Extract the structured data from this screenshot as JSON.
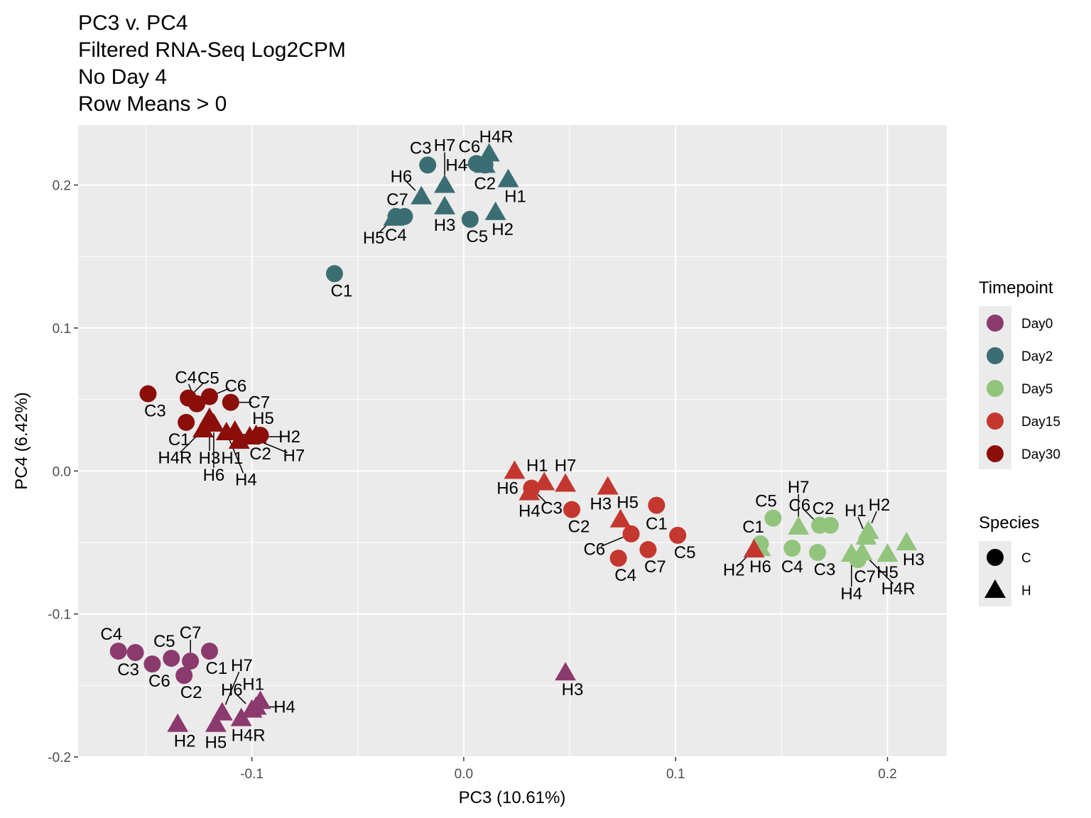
{
  "colors": {
    "Day0": "#8b3a6e",
    "Day2": "#3b6e73",
    "Day5": "#92c47d",
    "Day15": "#c4372f",
    "Day30": "#8b0e0a",
    "panel": "#ebebeb",
    "grid": "#ffffff"
  },
  "chart_data": {
    "type": "scatter",
    "title": [
      "PC3 v. PC4",
      "Filtered RNA-Seq Log2CPM",
      "No Day 4",
      "Row Means > 0"
    ],
    "xlabel": "PC3 (10.61%)",
    "ylabel": "PC4 (6.42%)",
    "xlim": [
      -0.182,
      0.228
    ],
    "ylim": [
      -0.2,
      0.242
    ],
    "xticks": [
      -0.1,
      0.0,
      0.1,
      0.2
    ],
    "xtick_labels": [
      "-0.1",
      "0.0",
      "0.1",
      "0.2"
    ],
    "yticks": [
      -0.2,
      -0.1,
      0.0,
      0.1,
      0.2
    ],
    "ytick_labels": [
      "-0.2",
      "-0.1",
      "0.0",
      "0.1",
      "0.2"
    ],
    "grid": true,
    "legend_timepoint": {
      "title": "Timepoint",
      "entries": [
        "Day0",
        "Day2",
        "Day5",
        "Day15",
        "Day30"
      ]
    },
    "legend_species": {
      "title": "Species",
      "entries": [
        "C",
        "H"
      ]
    },
    "points": [
      {
        "label": "C1",
        "timepoint": "Day0",
        "species": "C",
        "x": -0.12,
        "y": -0.126
      },
      {
        "label": "C2",
        "timepoint": "Day0",
        "species": "C",
        "x": -0.132,
        "y": -0.143
      },
      {
        "label": "C3",
        "timepoint": "Day0",
        "species": "C",
        "x": -0.155,
        "y": -0.127
      },
      {
        "label": "C4",
        "timepoint": "Day0",
        "species": "C",
        "x": -0.163,
        "y": -0.126
      },
      {
        "label": "C5",
        "timepoint": "Day0",
        "species": "C",
        "x": -0.138,
        "y": -0.131
      },
      {
        "label": "C6",
        "timepoint": "Day0",
        "species": "C",
        "x": -0.147,
        "y": -0.135
      },
      {
        "label": "C7",
        "timepoint": "Day0",
        "species": "C",
        "x": -0.129,
        "y": -0.133
      },
      {
        "label": "H1",
        "timepoint": "Day0",
        "species": "H",
        "x": -0.096,
        "y": -0.161
      },
      {
        "label": "H2",
        "timepoint": "Day0",
        "species": "H",
        "x": -0.135,
        "y": -0.177
      },
      {
        "label": "H3",
        "timepoint": "Day0",
        "species": "H",
        "x": 0.048,
        "y": -0.141
      },
      {
        "label": "H4",
        "timepoint": "Day0",
        "species": "H",
        "x": -0.098,
        "y": -0.165
      },
      {
        "label": "H4R",
        "timepoint": "Day0",
        "species": "H",
        "x": -0.105,
        "y": -0.173
      },
      {
        "label": "H5",
        "timepoint": "Day0",
        "species": "H",
        "x": -0.117,
        "y": -0.177
      },
      {
        "label": "H6",
        "timepoint": "Day0",
        "species": "H",
        "x": -0.1,
        "y": -0.167
      },
      {
        "label": "H7",
        "timepoint": "Day0",
        "species": "H",
        "x": -0.114,
        "y": -0.169
      },
      {
        "label": "C1",
        "timepoint": "Day2",
        "species": "C",
        "x": -0.061,
        "y": 0.138
      },
      {
        "label": "C2",
        "timepoint": "Day2",
        "species": "C",
        "x": 0.01,
        "y": 0.214
      },
      {
        "label": "C3",
        "timepoint": "Day2",
        "species": "C",
        "x": -0.017,
        "y": 0.214
      },
      {
        "label": "C4",
        "timepoint": "Day2",
        "species": "C",
        "x": -0.032,
        "y": 0.178
      },
      {
        "label": "C5",
        "timepoint": "Day2",
        "species": "C",
        "x": 0.003,
        "y": 0.176
      },
      {
        "label": "C6",
        "timepoint": "Day2",
        "species": "C",
        "x": 0.006,
        "y": 0.215
      },
      {
        "label": "C7",
        "timepoint": "Day2",
        "species": "C",
        "x": -0.028,
        "y": 0.178
      },
      {
        "label": "H1",
        "timepoint": "Day2",
        "species": "H",
        "x": 0.021,
        "y": 0.204
      },
      {
        "label": "H2",
        "timepoint": "Day2",
        "species": "H",
        "x": 0.015,
        "y": 0.181
      },
      {
        "label": "H3",
        "timepoint": "Day2",
        "species": "H",
        "x": -0.009,
        "y": 0.185
      },
      {
        "label": "H4",
        "timepoint": "Day2",
        "species": "H",
        "x": 0.01,
        "y": 0.214
      },
      {
        "label": "H4R",
        "timepoint": "Day2",
        "species": "H",
        "x": 0.012,
        "y": 0.222
      },
      {
        "label": "H5",
        "timepoint": "Day2",
        "species": "H",
        "x": -0.033,
        "y": 0.177
      },
      {
        "label": "H6",
        "timepoint": "Day2",
        "species": "H",
        "x": -0.02,
        "y": 0.192
      },
      {
        "label": "H7",
        "timepoint": "Day2",
        "species": "H",
        "x": -0.009,
        "y": 0.2
      },
      {
        "label": "C1",
        "timepoint": "Day5",
        "species": "C",
        "x": 0.14,
        "y": -0.051
      },
      {
        "label": "C2",
        "timepoint": "Day5",
        "species": "C",
        "x": 0.173,
        "y": -0.038
      },
      {
        "label": "C3",
        "timepoint": "Day5",
        "species": "C",
        "x": 0.167,
        "y": -0.057
      },
      {
        "label": "C4",
        "timepoint": "Day5",
        "species": "C",
        "x": 0.155,
        "y": -0.054
      },
      {
        "label": "C5",
        "timepoint": "Day5",
        "species": "C",
        "x": 0.146,
        "y": -0.033
      },
      {
        "label": "C6",
        "timepoint": "Day5",
        "species": "C",
        "x": 0.168,
        "y": -0.038
      },
      {
        "label": "C7",
        "timepoint": "Day5",
        "species": "C",
        "x": 0.186,
        "y": -0.062
      },
      {
        "label": "H1",
        "timepoint": "Day5",
        "species": "H",
        "x": 0.19,
        "y": -0.046
      },
      {
        "label": "H2",
        "timepoint": "Day5",
        "species": "H",
        "x": 0.191,
        "y": -0.042
      },
      {
        "label": "H3",
        "timepoint": "Day5",
        "species": "H",
        "x": 0.209,
        "y": -0.05
      },
      {
        "label": "H4",
        "timepoint": "Day5",
        "species": "H",
        "x": 0.183,
        "y": -0.058
      },
      {
        "label": "H4R",
        "timepoint": "Day5",
        "species": "H",
        "x": 0.188,
        "y": -0.057
      },
      {
        "label": "H5",
        "timepoint": "Day5",
        "species": "H",
        "x": 0.2,
        "y": -0.058
      },
      {
        "label": "H6",
        "timepoint": "Day5",
        "species": "H",
        "x": 0.14,
        "y": -0.054
      },
      {
        "label": "H7",
        "timepoint": "Day5",
        "species": "H",
        "x": 0.158,
        "y": -0.039
      },
      {
        "label": "C1",
        "timepoint": "Day15",
        "species": "C",
        "x": 0.091,
        "y": -0.024
      },
      {
        "label": "C2",
        "timepoint": "Day15",
        "species": "C",
        "x": 0.051,
        "y": -0.027
      },
      {
        "label": "C3",
        "timepoint": "Day15",
        "species": "C",
        "x": 0.032,
        "y": -0.012
      },
      {
        "label": "C4",
        "timepoint": "Day15",
        "species": "C",
        "x": 0.073,
        "y": -0.061
      },
      {
        "label": "C5",
        "timepoint": "Day15",
        "species": "C",
        "x": 0.101,
        "y": -0.045
      },
      {
        "label": "C6",
        "timepoint": "Day15",
        "species": "C",
        "x": 0.079,
        "y": -0.044
      },
      {
        "label": "C7",
        "timepoint": "Day15",
        "species": "C",
        "x": 0.087,
        "y": -0.055
      },
      {
        "label": "H1",
        "timepoint": "Day15",
        "species": "H",
        "x": 0.038,
        "y": -0.008
      },
      {
        "label": "H2",
        "timepoint": "Day15",
        "species": "H",
        "x": 0.137,
        "y": -0.055
      },
      {
        "label": "H3",
        "timepoint": "Day15",
        "species": "H",
        "x": 0.068,
        "y": -0.011
      },
      {
        "label": "H4",
        "timepoint": "Day15",
        "species": "H",
        "x": 0.031,
        "y": -0.015
      },
      {
        "label": "H5",
        "timepoint": "Day15",
        "species": "H",
        "x": 0.074,
        "y": -0.034
      },
      {
        "label": "H6",
        "timepoint": "Day15",
        "species": "H",
        "x": 0.024,
        "y": 0.0
      },
      {
        "label": "H7",
        "timepoint": "Day15",
        "species": "H",
        "x": 0.048,
        "y": -0.009
      },
      {
        "label": "C1",
        "timepoint": "Day30",
        "species": "C",
        "x": -0.131,
        "y": 0.034
      },
      {
        "label": "C2",
        "timepoint": "Day30",
        "species": "C",
        "x": -0.096,
        "y": 0.025
      },
      {
        "label": "C3",
        "timepoint": "Day30",
        "species": "C",
        "x": -0.149,
        "y": 0.054
      },
      {
        "label": "C4",
        "timepoint": "Day30",
        "species": "C",
        "x": -0.126,
        "y": 0.047
      },
      {
        "label": "C5",
        "timepoint": "Day30",
        "species": "C",
        "x": -0.13,
        "y": 0.051
      },
      {
        "label": "C6",
        "timepoint": "Day30",
        "species": "C",
        "x": -0.12,
        "y": 0.052
      },
      {
        "label": "C7",
        "timepoint": "Day30",
        "species": "C",
        "x": -0.11,
        "y": 0.048
      },
      {
        "label": "H1",
        "timepoint": "Day30",
        "species": "H",
        "x": -0.106,
        "y": 0.021
      },
      {
        "label": "H2",
        "timepoint": "Day30",
        "species": "H",
        "x": -0.101,
        "y": 0.024
      },
      {
        "label": "H3",
        "timepoint": "Day30",
        "species": "H",
        "x": -0.12,
        "y": 0.037
      },
      {
        "label": "H4",
        "timepoint": "Day30",
        "species": "H",
        "x": -0.112,
        "y": 0.027
      },
      {
        "label": "H4R",
        "timepoint": "Day30",
        "species": "H",
        "x": -0.123,
        "y": 0.029
      },
      {
        "label": "H5",
        "timepoint": "Day30",
        "species": "H",
        "x": -0.098,
        "y": 0.025
      },
      {
        "label": "H6",
        "timepoint": "Day30",
        "species": "H",
        "x": -0.118,
        "y": 0.033
      },
      {
        "label": "H7",
        "timepoint": "Day30",
        "species": "H",
        "x": -0.108,
        "y": 0.028
      }
    ]
  }
}
